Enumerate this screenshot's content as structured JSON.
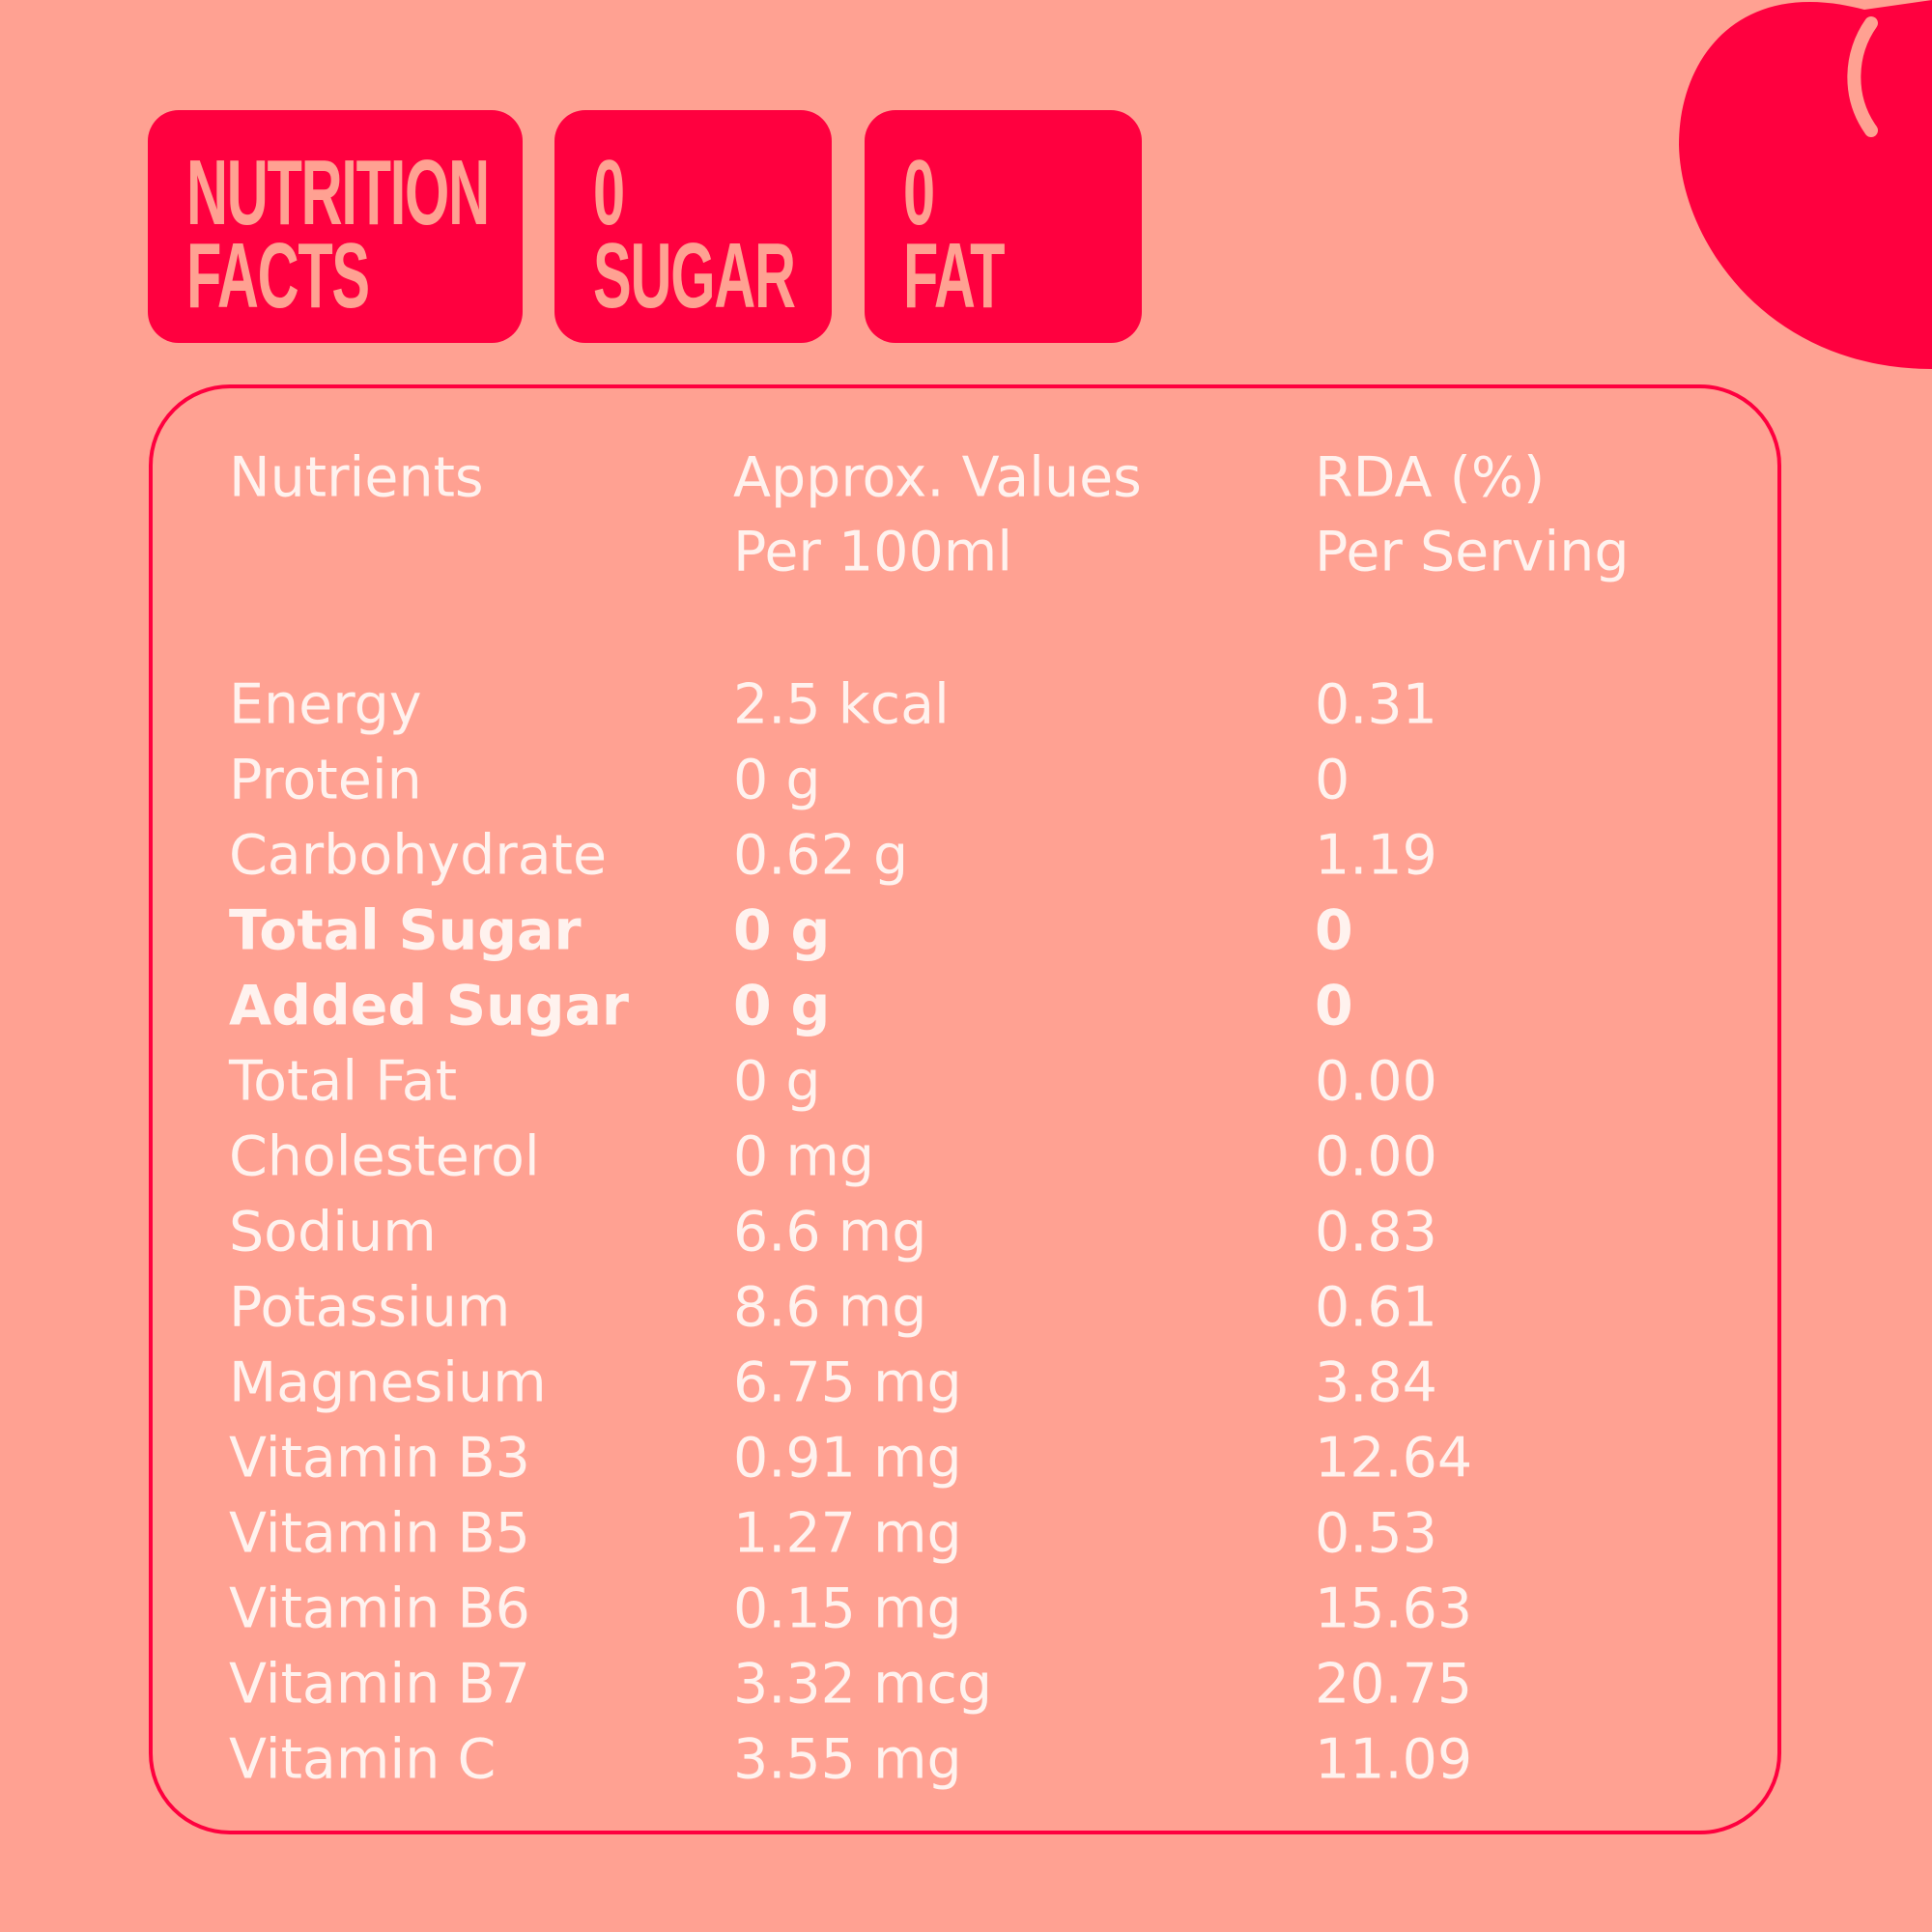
{
  "badges": [
    {
      "lines": [
        "NUTRITION",
        "FACTS"
      ]
    },
    {
      "lines": [
        "0",
        "SUGAR"
      ]
    },
    {
      "lines": [
        "0",
        "FAT"
      ]
    }
  ],
  "table": {
    "header": [
      [
        "Nutrients"
      ],
      [
        "Approx. Values",
        "Per 100ml"
      ],
      [
        "RDA (%)",
        "Per Serving"
      ]
    ],
    "rows": [
      {
        "cells": [
          "Energy",
          "2.5 kcal",
          "0.31"
        ]
      },
      {
        "cells": [
          "Protein",
          "0 g",
          "0"
        ]
      },
      {
        "cells": [
          "Carbohydrate",
          "0.62 g",
          "1.19"
        ]
      },
      {
        "cells": [
          "Total Sugar",
          "0 g",
          "0"
        ],
        "bold": true
      },
      {
        "cells": [
          "Added Sugar",
          "0 g",
          "0"
        ],
        "bold": true
      },
      {
        "cells": [
          "Total Fat",
          "0 g",
          "0.00"
        ]
      },
      {
        "cells": [
          "Cholesterol",
          "0 mg",
          "0.00"
        ]
      },
      {
        "cells": [
          "Sodium",
          "6.6 mg",
          "0.83"
        ]
      },
      {
        "cells": [
          "Potassium",
          "8.6 mg",
          "0.61"
        ]
      },
      {
        "cells": [
          "Magnesium",
          "6.75 mg",
          "3.84"
        ]
      },
      {
        "cells": [
          "Vitamin B3",
          "0.91 mg",
          "12.64"
        ]
      },
      {
        "cells": [
          "Vitamin B5",
          "1.27 mg",
          "0.53"
        ]
      },
      {
        "cells": [
          "Vitamin B6",
          "0.15 mg",
          "15.63"
        ]
      },
      {
        "cells": [
          "Vitamin B7",
          "3.32 mcg",
          "20.75"
        ]
      },
      {
        "cells": [
          "Vitamin C",
          "3.55 mg",
          "11.09"
        ]
      }
    ]
  }
}
